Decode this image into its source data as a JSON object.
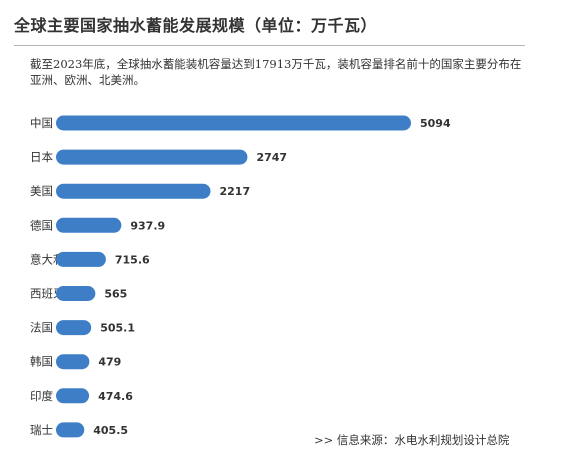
{
  "header": {
    "title": "全球主要国家抽水蓄能发展规模（单位：万千瓦）"
  },
  "description": "截至2023年底，全球抽水蓄能装机容量达到17913万千瓦，装机容量排名前十的国家主要分布在亚洲、欧洲、北美洲。",
  "footer": {
    "source": ">>  信息来源：水电水利规划设计总院"
  },
  "colors": {
    "bar": "#3d7ec6"
  },
  "chart_data": {
    "type": "bar",
    "orientation": "horizontal",
    "title": "全球主要国家抽水蓄能发展规模（单位：万千瓦）",
    "categories": [
      "中国",
      "日本",
      "美国",
      "德国",
      "意大利",
      "西班牙",
      "法国",
      "韩国",
      "印度",
      "瑞士"
    ],
    "values": [
      5094,
      2747,
      2217,
      937.9,
      715.6,
      565,
      505.1,
      479,
      474.6,
      405.5
    ],
    "value_labels": [
      "5094",
      "2747",
      "2217",
      "937.9",
      "715.6",
      "565",
      "505.1",
      "479",
      "474.6",
      "405.5"
    ],
    "xlabel": "",
    "ylabel": "",
    "grid": false,
    "legend": "none"
  }
}
